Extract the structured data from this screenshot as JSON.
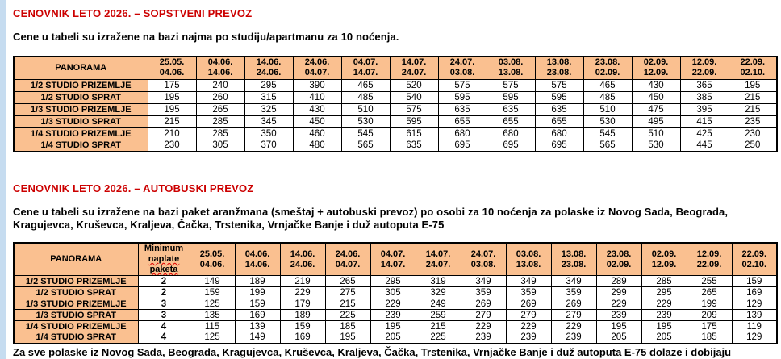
{
  "colors": {
    "accent_red": "#cc0000",
    "header_fill": "#FAC090",
    "page_edge_blue": "#c6dcf0"
  },
  "section1": {
    "title": "CENOVNIK LETO 2026. – SOPSTVENI PREVOZ",
    "description": "Cene u tabeli su izražene na bazi najma po studiju/apartmanu za 10 noćenja."
  },
  "section2": {
    "title": "CENOVNIK LETO 2026. – AUTOBUSKI PREVOZ",
    "description": "Cene u tabeli su izražene na bazi paket aranžmana (smeštaj + autobuski prevoz) po osobi za 10 noćenja za polaske iz Novog Sada, Beograda, Kragujevca, Kruševca, Kraljeva, Čačka, Trstenika, Vrnjačke Banje i duž autoputa E-75"
  },
  "footnote_truncated": "Za sve polaske iz Novog Sada, Beograda, Kragujevca, Kruševca, Kraljeva, Čačka, Trstenika, Vrnjačke Banje i duž autoputa E-75 dolaze i dobijaju",
  "tables": {
    "sopstveni": {
      "corner_label": "PANORAMA",
      "date_columns": [
        [
          "25.05.",
          "04.06."
        ],
        [
          "04.06.",
          "14.06."
        ],
        [
          "14.06.",
          "24.06."
        ],
        [
          "24.06.",
          "04.07."
        ],
        [
          "04.07.",
          "14.07."
        ],
        [
          "14.07.",
          "24.07."
        ],
        [
          "24.07.",
          "03.08."
        ],
        [
          "03.08.",
          "13.08."
        ],
        [
          "13.08.",
          "23.08."
        ],
        [
          "23.08.",
          "02.09."
        ],
        [
          "02.09.",
          "12.09."
        ],
        [
          "12.09.",
          "22.09."
        ],
        [
          "22.09.",
          "02.10."
        ]
      ],
      "rows": [
        {
          "label": "1/2 STUDIO PRIZEMLJE",
          "values": [
            175,
            240,
            295,
            390,
            465,
            520,
            575,
            575,
            575,
            465,
            430,
            365,
            195
          ]
        },
        {
          "label": "1/2 STUDIO SPRAT",
          "values": [
            195,
            260,
            315,
            410,
            485,
            540,
            595,
            595,
            595,
            485,
            450,
            385,
            215
          ]
        },
        {
          "label": "1/3 STUDIO PRIZEMLJE",
          "values": [
            195,
            265,
            325,
            430,
            510,
            575,
            635,
            635,
            635,
            510,
            475,
            395,
            215
          ]
        },
        {
          "label": "1/3 STUDIO SPRAT",
          "values": [
            215,
            285,
            345,
            450,
            530,
            595,
            655,
            655,
            655,
            530,
            495,
            415,
            235
          ]
        },
        {
          "label": "1/4 STUDIO PRIZEMLJE",
          "values": [
            210,
            285,
            350,
            460,
            545,
            615,
            680,
            680,
            680,
            545,
            510,
            425,
            230
          ]
        },
        {
          "label": "1/4 STUDIO SPRAT",
          "values": [
            230,
            305,
            370,
            480,
            565,
            635,
            695,
            695,
            695,
            565,
            530,
            445,
            250
          ]
        }
      ]
    },
    "autobuski": {
      "corner_label": "PANORAMA",
      "minimum_header": [
        "Minimum",
        "naplate",
        "paketa"
      ],
      "date_columns": [
        [
          "25.05.",
          "04.06."
        ],
        [
          "04.06.",
          "14.06."
        ],
        [
          "14.06.",
          "24.06."
        ],
        [
          "24.06.",
          "04.07."
        ],
        [
          "04.07.",
          "14.07."
        ],
        [
          "14.07.",
          "24.07."
        ],
        [
          "24.07.",
          "03.08."
        ],
        [
          "03.08.",
          "13.08."
        ],
        [
          "13.08.",
          "23.08."
        ],
        [
          "23.08.",
          "02.09."
        ],
        [
          "02.09.",
          "12.09."
        ],
        [
          "12.09.",
          "22.09."
        ],
        [
          "22.09.",
          "02.10."
        ]
      ],
      "rows": [
        {
          "label": "1/2 STUDIO PRIZEMLJE",
          "minimum": 2,
          "values": [
            149,
            189,
            219,
            265,
            295,
            319,
            349,
            349,
            349,
            289,
            285,
            255,
            159
          ]
        },
        {
          "label": "1/2 STUDIO SPRAT",
          "minimum": 2,
          "values": [
            159,
            199,
            229,
            275,
            305,
            329,
            359,
            359,
            359,
            299,
            295,
            265,
            169
          ]
        },
        {
          "label": "1/3 STUDIO PRIZEMLJE",
          "minimum": 3,
          "values": [
            125,
            159,
            179,
            215,
            229,
            249,
            269,
            269,
            269,
            229,
            229,
            199,
            129
          ]
        },
        {
          "label": "1/3 STUDIO SPRAT",
          "minimum": 3,
          "values": [
            135,
            169,
            189,
            225,
            239,
            259,
            279,
            279,
            279,
            239,
            239,
            209,
            139
          ]
        },
        {
          "label": "1/4 STUDIO PRIZEMLJE",
          "minimum": 4,
          "values": [
            115,
            139,
            159,
            185,
            195,
            215,
            229,
            229,
            229,
            195,
            195,
            175,
            119
          ]
        },
        {
          "label": "1/4 STUDIO SPRAT",
          "minimum": 4,
          "values": [
            125,
            149,
            169,
            195,
            205,
            225,
            239,
            239,
            239,
            205,
            205,
            185,
            129
          ]
        }
      ]
    }
  }
}
